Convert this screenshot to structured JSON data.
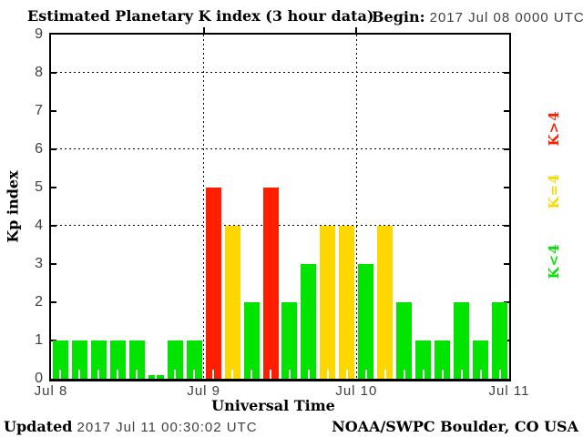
{
  "header": {
    "title": "Estimated Planetary K index (3 hour data)",
    "begin_label": "Begin:",
    "begin_value": "2017 Jul 08 0000 UTC"
  },
  "footer": {
    "updated_label": "Updated",
    "updated_value": "2017 Jul 11 00:30:02 UTC",
    "source": "NOAA/SWPC Boulder, CO USA"
  },
  "chart_data": {
    "type": "bar",
    "title": "Estimated Planetary K index (3 hour data)",
    "xlabel": "Universal Time",
    "ylabel": "Kp index",
    "begin_utc": "2017 Jul 08 0000 UTC",
    "interval_hours": 3,
    "ylim": [
      0,
      9
    ],
    "y_ticks": [
      0,
      1,
      2,
      3,
      4,
      5,
      6,
      7,
      8,
      9
    ],
    "gridlines_y": [
      4,
      6,
      8
    ],
    "grid_style": "dotted",
    "day_labels": [
      "Jul 8",
      "Jul 9",
      "Jul 10",
      "Jul 11"
    ],
    "values": [
      1,
      1,
      1,
      1,
      1,
      0,
      1,
      1,
      5,
      4,
      2,
      5,
      2,
      3,
      4,
      4,
      3,
      4,
      2,
      1,
      1,
      2,
      1,
      2
    ],
    "color_rules": {
      "below_4": "#00e400",
      "equal_4": "#ffd700",
      "above_4": "#ff1e00"
    },
    "legend": [
      {
        "label": "K>4",
        "color": "#ff1e00"
      },
      {
        "label": "K=4",
        "color": "#ffd700"
      },
      {
        "label": "K<4",
        "color": "#00e400"
      }
    ],
    "legend_position": "right"
  }
}
